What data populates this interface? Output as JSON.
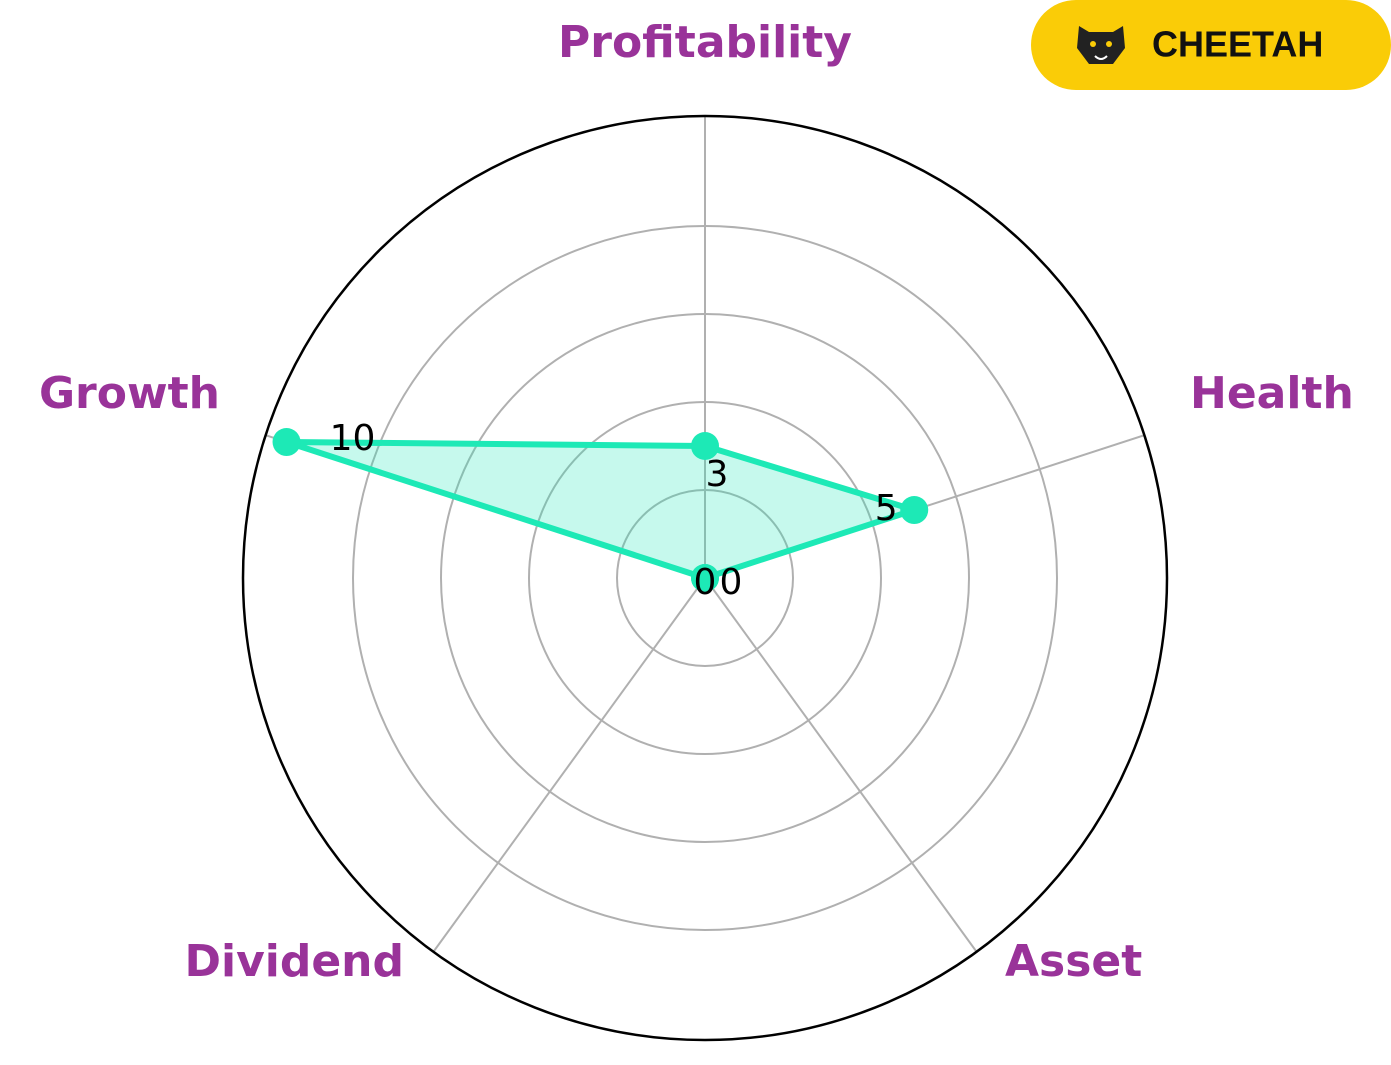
{
  "logo_text": "CHEETAH",
  "chart_data": {
    "type": "radar",
    "categories": [
      "Profitability",
      "Health",
      "Asset",
      "Dividend",
      "Growth"
    ],
    "values": [
      3,
      5,
      0,
      0,
      10
    ],
    "color": "#1de9b6",
    "label_color": "#993399",
    "rlim": [
      0,
      10.5
    ],
    "rticks": [
      2,
      4,
      6,
      8
    ],
    "grid": true
  }
}
